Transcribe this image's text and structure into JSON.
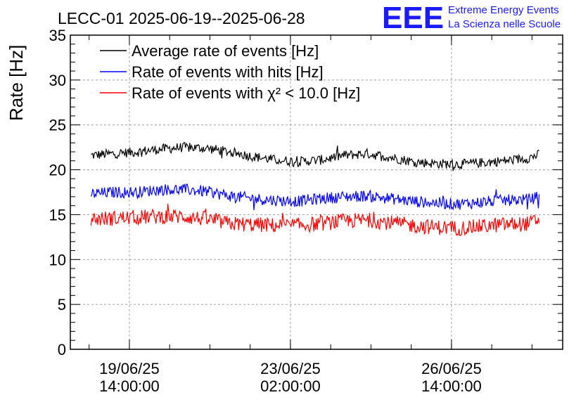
{
  "title": "LECC-01 2025-06-19--2025-06-28",
  "logo": {
    "text": "EEE",
    "line1": "Extreme Energy Events",
    "line2": "La Scienza nelle Scuole",
    "color": "#1a1aff"
  },
  "chart_data": {
    "type": "line",
    "title": "LECC-01 2025-06-19--2025-06-28",
    "xlabel": "",
    "ylabel": "Rate [Hz]",
    "ylim": [
      0,
      35
    ],
    "yticks": [
      0,
      5,
      10,
      15,
      20,
      25,
      30,
      35
    ],
    "x_range": [
      "2025-06-18 07:12",
      "2025-06-29 00:00"
    ],
    "x_ticks": [
      {
        "date": "19/06/25",
        "time": "14:00:00",
        "x": "2025-06-19 14:00"
      },
      {
        "date": "23/06/25",
        "time": "02:00:00",
        "x": "2025-06-23 02:00"
      },
      {
        "date": "26/06/25",
        "time": "14:00:00",
        "x": "2025-06-26 14:00"
      }
    ],
    "grid": true,
    "legend_position": "top-left",
    "series": [
      {
        "name": "Average rate of events [Hz]",
        "color": "#000000",
        "x": [
          "2025-06-18 18:00",
          "2025-06-19 06:00",
          "2025-06-19 18:00",
          "2025-06-20 06:00",
          "2025-06-20 18:00",
          "2025-06-21 06:00",
          "2025-06-21 18:00",
          "2025-06-22 06:00",
          "2025-06-22 18:00",
          "2025-06-23 06:00",
          "2025-06-23 18:00",
          "2025-06-24 06:00",
          "2025-06-24 18:00",
          "2025-06-25 06:00",
          "2025-06-25 18:00",
          "2025-06-26 06:00",
          "2025-06-26 18:00",
          "2025-06-27 06:00",
          "2025-06-27 18:00",
          "2025-06-28 06:00",
          "2025-06-28 12:00"
        ],
        "values": [
          21.6,
          21.8,
          22.0,
          22.3,
          22.5,
          22.4,
          22.0,
          21.5,
          21.1,
          20.9,
          21.1,
          21.6,
          21.8,
          21.4,
          20.9,
          20.7,
          20.6,
          20.8,
          21.0,
          21.3,
          21.7
        ]
      },
      {
        "name": "Rate of events with hits [Hz]",
        "color": "#0000ff",
        "x": [
          "2025-06-18 18:00",
          "2025-06-19 06:00",
          "2025-06-19 18:00",
          "2025-06-20 06:00",
          "2025-06-20 18:00",
          "2025-06-21 06:00",
          "2025-06-21 18:00",
          "2025-06-22 06:00",
          "2025-06-22 18:00",
          "2025-06-23 06:00",
          "2025-06-23 18:00",
          "2025-06-24 06:00",
          "2025-06-24 18:00",
          "2025-06-25 06:00",
          "2025-06-25 18:00",
          "2025-06-26 06:00",
          "2025-06-26 18:00",
          "2025-06-27 06:00",
          "2025-06-27 18:00",
          "2025-06-28 06:00",
          "2025-06-28 12:00"
        ],
        "values": [
          17.3,
          17.5,
          17.5,
          17.8,
          17.8,
          17.6,
          17.1,
          16.8,
          16.6,
          16.5,
          16.8,
          17.0,
          17.1,
          16.8,
          16.5,
          16.3,
          16.2,
          16.4,
          16.6,
          16.7,
          17.0
        ]
      },
      {
        "name": "Rate of events with χ² < 10.0 [Hz]",
        "color": "#ff0000",
        "x": [
          "2025-06-18 18:00",
          "2025-06-19 06:00",
          "2025-06-19 18:00",
          "2025-06-20 06:00",
          "2025-06-20 18:00",
          "2025-06-21 06:00",
          "2025-06-21 18:00",
          "2025-06-22 06:00",
          "2025-06-22 18:00",
          "2025-06-23 06:00",
          "2025-06-23 18:00",
          "2025-06-24 06:00",
          "2025-06-24 18:00",
          "2025-06-25 06:00",
          "2025-06-25 18:00",
          "2025-06-26 06:00",
          "2025-06-26 18:00",
          "2025-06-27 06:00",
          "2025-06-27 18:00",
          "2025-06-28 06:00",
          "2025-06-28 12:00"
        ],
        "values": [
          14.5,
          14.6,
          14.7,
          14.8,
          14.8,
          14.5,
          14.0,
          13.9,
          13.8,
          13.8,
          14.0,
          14.3,
          14.4,
          14.1,
          13.8,
          13.6,
          13.5,
          13.7,
          13.9,
          14.0,
          14.5
        ]
      }
    ]
  }
}
